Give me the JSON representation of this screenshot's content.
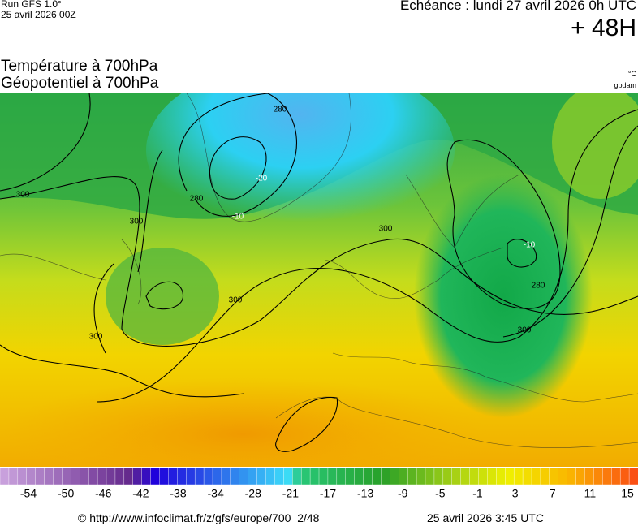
{
  "header": {
    "run": "Run GFS 1.0°",
    "run_date": "25 avril 2026 00Z",
    "forecast": "Echéance : lundi 27 avril 2026 0h UTC",
    "lead": "+ 48H",
    "field1": "Température à 700hPa",
    "field2": "Géopotentiel à 700hPa",
    "unit1": "°C",
    "unit2": "gpdam"
  },
  "map": {
    "contour_labels": [
      "280",
      "280",
      "300",
      "300",
      "300",
      "300",
      "300",
      "280",
      "300",
      "-10",
      "-20",
      "-10"
    ]
  },
  "colorbar": {
    "labels": [
      "-54",
      "-50",
      "-46",
      "-42",
      "-38",
      "-34",
      "-28",
      "-21",
      "-17",
      "-13",
      "-9",
      "-5",
      "-1",
      "3",
      "7",
      "11",
      "15"
    ]
  },
  "footer": {
    "source": "© http://www.infoclimat.fr/z/gfs/europe/700_2/48",
    "issued": "25 avril 2026  3:45 UTC"
  }
}
